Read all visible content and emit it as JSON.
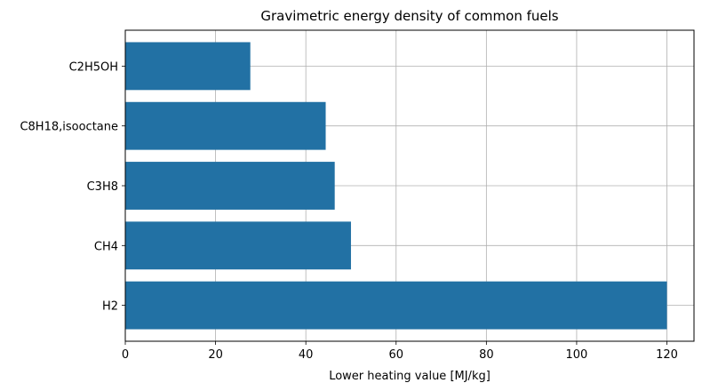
{
  "chart_data": {
    "type": "bar",
    "orientation": "horizontal",
    "title": "Gravimetric energy density of common fuels",
    "xlabel": "Lower heating value [MJ/kg]",
    "ylabel": "",
    "categories": [
      "H2",
      "CH4",
      "C3H8",
      "C8H18,isooctane",
      "C2H5OH"
    ],
    "values": [
      120,
      50,
      46.4,
      44.4,
      27.7
    ],
    "xlim": [
      0,
      126
    ],
    "xticks": [
      0,
      20,
      40,
      60,
      80,
      100,
      120
    ],
    "grid": true,
    "bar_color": "#2271a4",
    "grid_color": "#b0b0b0"
  }
}
